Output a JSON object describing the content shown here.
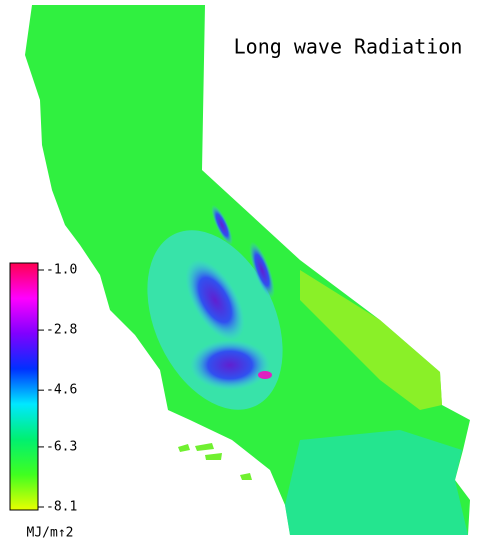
{
  "title": "Long wave Radiation",
  "colorbar": {
    "lim": [
      -8.1,
      -1.0
    ],
    "ticks": [
      {
        "value": -1.0,
        "label": "-1.0"
      },
      {
        "value": -2.8,
        "label": "-2.8"
      },
      {
        "value": -4.6,
        "label": "-4.6"
      },
      {
        "value": -6.3,
        "label": "-6.3"
      },
      {
        "value": -8.1,
        "label": "-8.1"
      }
    ],
    "unit": "MJ/m↑2",
    "colors": [
      "#e8ff00",
      "#40ff20",
      "#00f070",
      "#00e8ff",
      "#0030ff",
      "#8000ff",
      "#ff00ff",
      "#ff0050"
    ]
  }
}
